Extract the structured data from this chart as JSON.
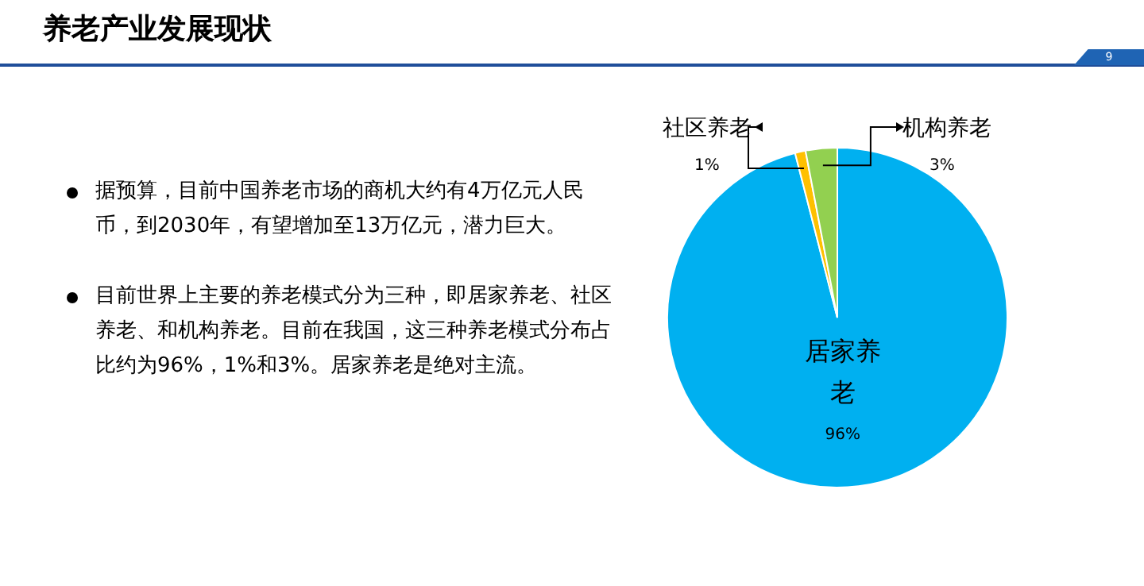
{
  "chart_data": {
    "type": "pie",
    "title": "养老产业发展现状",
    "categories": [
      "居家养老",
      "社区养老",
      "机构养老"
    ],
    "values": [
      96,
      1,
      3
    ],
    "colors": [
      "#00b0f0",
      "#ffc000",
      "#92d050"
    ],
    "value_labels": [
      "96%",
      "1%",
      "3%"
    ],
    "annotations": [
      "据预算，目前中国养老市场的商机大约有4万亿元人民币，到2030年，有望增加至13万亿元，潜力巨大。",
      "目前世界上主要的养老模式分为三种，即居家养老、社区养老、和机构养老。目前在我国，这三种养老模式分布占比约为96%，1%和3%。居家养老是绝对主流。",
      "9"
    ]
  }
}
